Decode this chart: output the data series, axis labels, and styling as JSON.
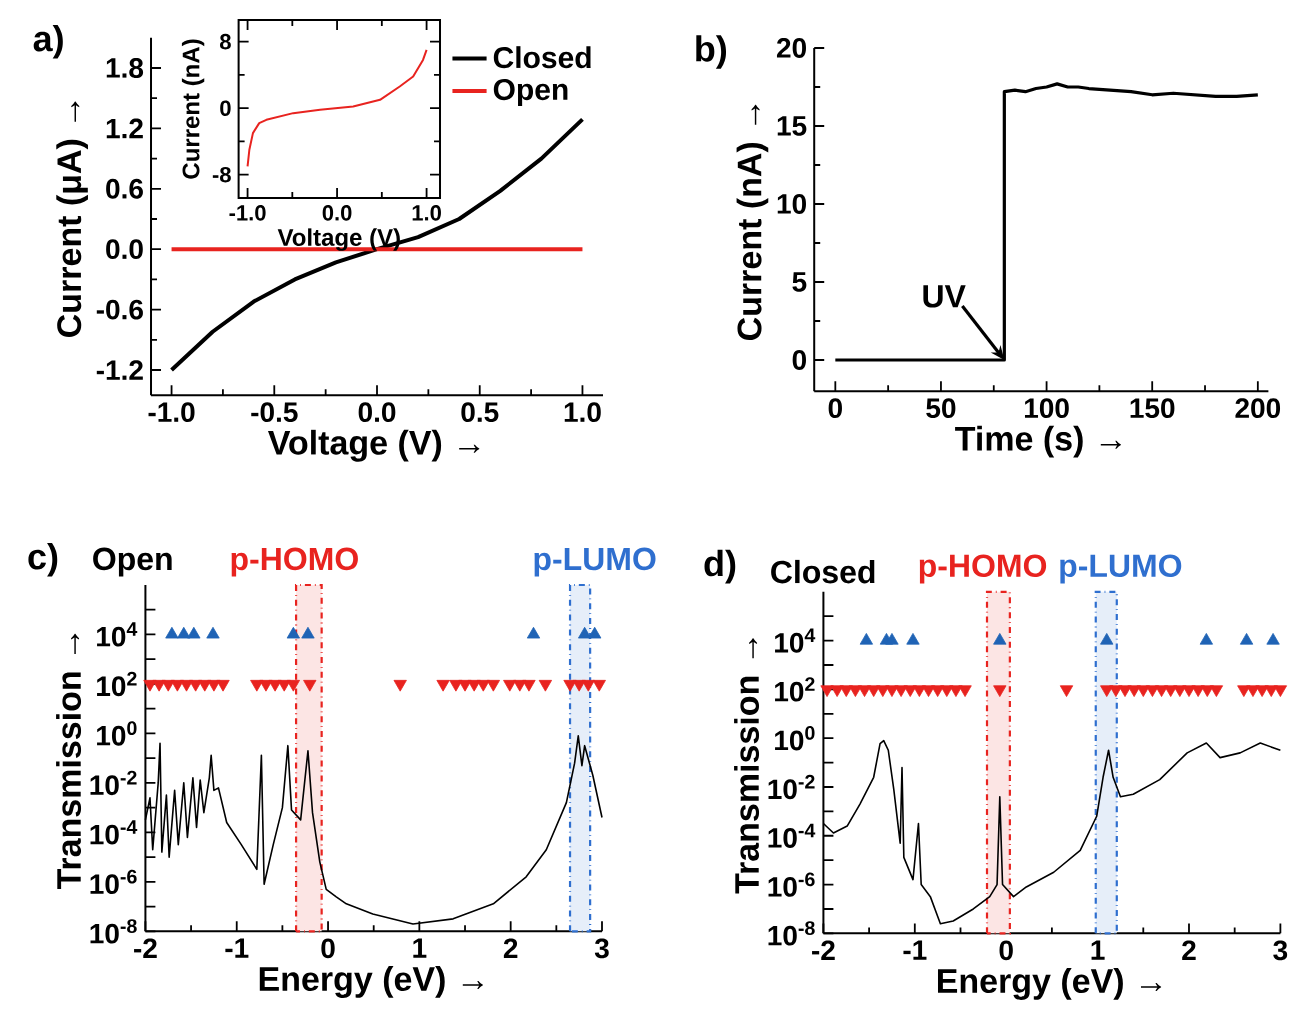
{
  "chart_data": [
    {
      "type": "line",
      "annotations": [
        "a)"
      ],
      "xlabel": "Voltage (V) →",
      "ylabel": "Current (μA) →",
      "xlim": [
        -1.1,
        1.1
      ],
      "ylim": [
        -1.45,
        2.1
      ],
      "xticks": [
        {
          "value": -1,
          "label": "-1.0"
        },
        -0.5,
        {
          "value": 0,
          "label": "0.0"
        },
        0.5,
        {
          "value": 1,
          "label": "1.0"
        }
      ],
      "yticks": [
        -1.2,
        -0.6,
        {
          "value": 0,
          "label": "0.0"
        },
        0.6,
        1.2,
        1.8
      ],
      "legend": "top right",
      "x": [
        -1.0,
        -0.8,
        -0.6,
        -0.4,
        -0.2,
        0.0,
        0.2,
        0.4,
        0.6,
        0.8,
        1.0
      ],
      "series": [
        {
          "name": "Closed",
          "color": "#000000",
          "values": [
            -1.2,
            -0.82,
            -0.52,
            -0.3,
            -0.13,
            0.0,
            0.12,
            0.3,
            0.58,
            0.9,
            1.29
          ]
        },
        {
          "name": "Open",
          "color": "#e8231f",
          "values": [
            0.0,
            0.0,
            0.0,
            0.0,
            0.0,
            0.0,
            0.0,
            0.0,
            0.0,
            0.0,
            0.0
          ]
        }
      ]
    },
    {
      "type": "line",
      "xlabel": "Voltage (V)",
      "ylabel": "Current (nA)",
      "xlim": [
        -1.1,
        1.15
      ],
      "ylim": [
        -10.8,
        10.6
      ],
      "xticks": [
        {
          "value": -1,
          "label": "-1.0"
        },
        {
          "value": 0,
          "label": "0.0"
        },
        {
          "value": 1,
          "label": "1.0"
        }
      ],
      "yticks": [
        -8,
        0,
        8
      ],
      "x": [
        -1.0,
        -0.98,
        -0.94,
        -0.87,
        -0.79,
        -0.49,
        -0.19,
        0.18,
        0.48,
        0.7,
        0.85,
        0.96,
        1.0
      ],
      "series": [
        {
          "color": "#e8231f",
          "values": [
            -7.0,
            -5.0,
            -3.0,
            -1.8,
            -1.4,
            -0.6,
            -0.2,
            0.2,
            1.0,
            2.6,
            3.8,
            5.8,
            7.0
          ]
        }
      ]
    },
    {
      "type": "line",
      "annotations": [
        "b)",
        {
          "text": "UV",
          "x": 80,
          "y": 0
        }
      ],
      "xlabel": "Time (s) →",
      "ylabel": "Current (nA) →",
      "xlim": [
        -10,
        205
      ],
      "ylim": [
        -2,
        20
      ],
      "xticks": [
        0,
        50,
        100,
        150,
        200
      ],
      "yticks": [
        0,
        5,
        10,
        15,
        20
      ],
      "x": [
        0,
        80,
        80,
        85,
        90,
        95,
        100,
        105,
        110,
        115,
        120,
        130,
        140,
        150,
        160,
        170,
        180,
        190,
        200
      ],
      "series": [
        {
          "color": "#000000",
          "values": [
            0,
            0,
            17.2,
            17.3,
            17.2,
            17.4,
            17.5,
            17.7,
            17.5,
            17.5,
            17.4,
            17.3,
            17.2,
            17.0,
            17.1,
            17.0,
            16.9,
            16.9,
            17.0
          ]
        }
      ]
    },
    {
      "type": "line",
      "title": "Open",
      "annotations": [
        "c)"
      ],
      "xlabel": "Energy (eV) →",
      "ylabel": "Transmission →",
      "log": "y",
      "xlim": [
        -2,
        3
      ],
      "ylim": [
        1e-08,
        1000000.0
      ],
      "xticks": [
        -2,
        -1,
        0,
        1,
        2,
        3
      ],
      "yticks": [
        {
          "value": 1e-08,
          "label": "10$^{-8}$"
        },
        {
          "value": 1e-07,
          "label": null
        },
        {
          "value": 1e-06,
          "label": "10$^{-6}$"
        },
        {
          "value": 1e-05,
          "label": null
        },
        {
          "value": 0.0001,
          "label": "10$^{-4}$"
        },
        {
          "value": 0.001,
          "label": null
        },
        {
          "value": 0.01,
          "label": "10$^{-2}$"
        },
        {
          "value": 0.1,
          "label": null
        },
        {
          "value": 1,
          "label": "10$^{0}$"
        },
        {
          "value": 10,
          "label": null
        },
        {
          "value": 100,
          "label": "10$^{2}$"
        },
        {
          "value": 1000,
          "label": null
        },
        {
          "value": 10000,
          "label": "10$^{4}$"
        },
        {
          "value": 100000,
          "label": null
        }
      ],
      "bands": [
        {
          "axis": "x",
          "from": -0.35,
          "to": -0.07,
          "label": "p-HOMO",
          "color": "#e8231f"
        },
        {
          "axis": "x",
          "from": 2.65,
          "to": 2.87,
          "label": "p-LUMO",
          "color": "#2f6fcf"
        }
      ],
      "series": [
        {
          "type": "line",
          "color": "#000000",
          "x": [
            -2.0,
            -1.95,
            -1.92,
            -1.86,
            -1.84,
            -1.82,
            -1.77,
            -1.74,
            -1.68,
            -1.64,
            -1.58,
            -1.54,
            -1.48,
            -1.44,
            -1.4,
            -1.36,
            -1.3,
            -1.28,
            -1.25,
            -1.2,
            -1.11,
            -0.95,
            -0.78,
            -0.73,
            -0.7,
            -0.6,
            -0.5,
            -0.44,
            -0.4,
            -0.3,
            -0.22,
            -0.17,
            -0.09,
            -0.02,
            0.09,
            0.2,
            0.49,
            0.93,
            1.37,
            1.81,
            2.17,
            2.39,
            2.61,
            2.7,
            2.74,
            2.78,
            2.81,
            2.9,
            3.0
          ],
          "values": [
            0.00032,
            0.0025,
            2e-05,
            0.01,
            0.4,
            1.6e-05,
            0.0032,
            1e-05,
            0.005,
            3.2e-05,
            0.01,
            6.3e-05,
            0.016,
            0.00016,
            0.013,
            0.00063,
            0.016,
            0.13,
            0.005,
            0.0063,
            0.00025,
            3.2e-05,
            3.2e-06,
            0.13,
            8e-07,
            3.2e-05,
            0.001,
            0.32,
            0.0008,
            0.00032,
            0.2,
            0.00063,
            6.3e-06,
            5e-07,
            2.5e-07,
            1.3e-07,
            5e-08,
            2e-08,
            3.2e-08,
            1.3e-07,
            1.6e-06,
            2e-05,
            0.0016,
            0.063,
            0.8,
            0.05,
            0.32,
            0.02,
            0.0004
          ]
        },
        {
          "type": "scatter",
          "marker": "triangle",
          "color": "#1f63b5",
          "x": [
            -1.71,
            -1.58,
            -1.47,
            -1.26,
            -0.38,
            -0.22,
            2.25,
            2.81,
            2.92
          ],
          "values": [
            10000,
            10000,
            10000,
            10000,
            10000,
            10000,
            10000,
            10000,
            10000
          ]
        },
        {
          "type": "scatter",
          "marker": "triangle_down",
          "color": "#e8231f",
          "x": [
            -1.95,
            -1.85,
            -1.75,
            -1.65,
            -1.55,
            -1.45,
            -1.35,
            -1.25,
            -1.15,
            -0.78,
            -0.68,
            -0.58,
            -0.48,
            -0.38,
            -0.2,
            0.79,
            1.26,
            1.4,
            1.5,
            1.6,
            1.7,
            1.81,
            1.99,
            2.1,
            2.2,
            2.38,
            2.65,
            2.75,
            2.85,
            2.97
          ],
          "values": [
            100,
            100,
            100,
            100,
            100,
            100,
            100,
            100,
            100,
            100,
            100,
            100,
            100,
            100,
            100,
            100,
            100,
            100,
            100,
            100,
            100,
            100,
            100,
            100,
            100,
            100,
            100,
            100,
            100,
            100
          ]
        }
      ]
    },
    {
      "type": "line",
      "title": "Closed",
      "annotations": [
        "d)"
      ],
      "xlabel": "Energy (eV) →",
      "ylabel": "Transmission →",
      "log": "y",
      "xlim": [
        -2,
        3
      ],
      "ylim": [
        1e-08,
        1000000.0
      ],
      "xticks": [
        -2,
        -1,
        0,
        1,
        2,
        3
      ],
      "yticks": [
        {
          "value": 1e-08,
          "label": "10$^{-8}$"
        },
        {
          "value": 1e-07,
          "label": null
        },
        {
          "value": 1e-06,
          "label": "10$^{-6}$"
        },
        {
          "value": 1e-05,
          "label": null
        },
        {
          "value": 0.0001,
          "label": "10$^{-4}$"
        },
        {
          "value": 0.001,
          "label": null
        },
        {
          "value": 0.01,
          "label": "10$^{-2}$"
        },
        {
          "value": 0.1,
          "label": null
        },
        {
          "value": 1,
          "label": "10$^{0}$"
        },
        {
          "value": 10,
          "label": null
        },
        {
          "value": 100,
          "label": "10$^{2}$"
        },
        {
          "value": 1000,
          "label": null
        },
        {
          "value": 10000,
          "label": "10$^{4}$"
        },
        {
          "value": 100000,
          "label": null
        }
      ],
      "bands": [
        {
          "axis": "x",
          "from": -0.21,
          "to": 0.04,
          "label": "p-HOMO",
          "color": "#e8231f"
        },
        {
          "axis": "x",
          "from": 0.98,
          "to": 1.21,
          "label": "p-LUMO",
          "color": "#2f6fcf"
        }
      ],
      "series": [
        {
          "type": "line",
          "color": "#000000",
          "x": [
            -2.0,
            -1.89,
            -1.74,
            -1.6,
            -1.45,
            -1.38,
            -1.34,
            -1.29,
            -1.23,
            -1.16,
            -1.14,
            -1.12,
            -1.02,
            -0.96,
            -0.93,
            -0.83,
            -0.72,
            -0.58,
            -0.36,
            -0.18,
            -0.1,
            -0.07,
            -0.04,
            0.08,
            0.22,
            0.52,
            0.81,
            0.99,
            1.06,
            1.12,
            1.17,
            1.25,
            1.39,
            1.68,
            1.98,
            2.19,
            2.34,
            2.56,
            2.78,
            3.0
          ],
          "values": [
            0.00032,
            0.00013,
            0.00025,
            0.002,
            0.025,
            0.6,
            0.8,
            0.32,
            0.008,
            5e-05,
            0.063,
            1.3e-05,
            1.6e-06,
            0.00032,
            1e-06,
            3.2e-07,
            2.5e-08,
            3.2e-08,
            1e-07,
            3.2e-07,
            1e-06,
            0.004,
            1e-06,
            3.2e-07,
            8e-07,
            3.2e-06,
            2.5e-05,
            0.00063,
            0.025,
            0.32,
            0.025,
            0.004,
            0.005,
            0.02,
            0.25,
            0.63,
            0.16,
            0.25,
            0.63,
            0.32
          ]
        },
        {
          "type": "scatter",
          "marker": "triangle",
          "color": "#1f63b5",
          "x": [
            -1.53,
            -1.31,
            -1.25,
            -1.02,
            -0.07,
            1.1,
            2.19,
            2.63,
            2.92
          ],
          "values": [
            10000,
            10000,
            10000,
            10000,
            10000,
            10000,
            10000,
            10000,
            10000
          ]
        },
        {
          "type": "scatter",
          "marker": "triangle_down",
          "color": "#e8231f",
          "x": [
            -1.96,
            -1.85,
            -1.75,
            -1.65,
            -1.55,
            -1.45,
            -1.35,
            -1.25,
            -1.15,
            -1.05,
            -0.95,
            -0.85,
            -0.75,
            -0.65,
            -0.55,
            -0.45,
            -0.07,
            0.66,
            1.1,
            1.2,
            1.3,
            1.4,
            1.5,
            1.6,
            1.7,
            1.8,
            1.9,
            2.0,
            2.1,
            2.2,
            2.3,
            2.6,
            2.7,
            2.8,
            2.9,
            3.0
          ],
          "values": [
            100,
            100,
            100,
            100,
            100,
            100,
            100,
            100,
            100,
            100,
            100,
            100,
            100,
            100,
            100,
            100,
            100,
            100,
            100,
            100,
            100,
            100,
            100,
            100,
            100,
            100,
            100,
            100,
            100,
            100,
            100,
            100,
            100,
            100,
            100,
            100
          ]
        }
      ]
    }
  ]
}
